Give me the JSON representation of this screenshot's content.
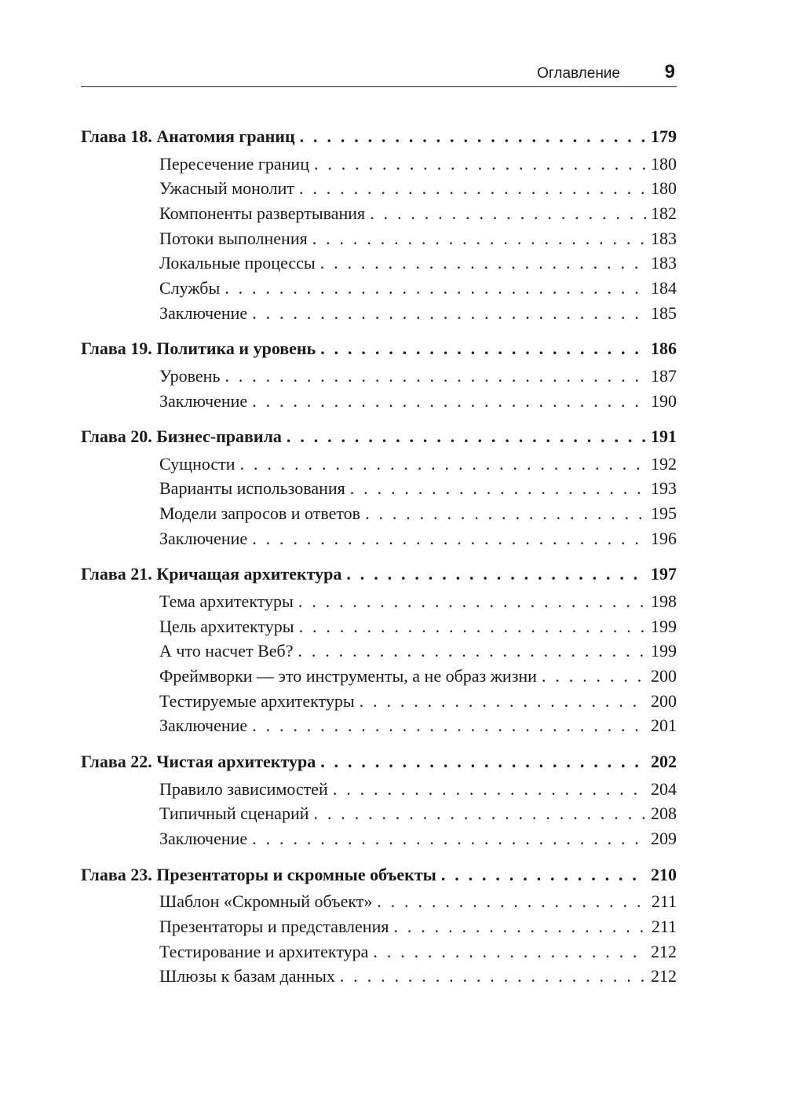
{
  "header": {
    "title": "Оглавление",
    "page_number": "9"
  },
  "toc": [
    {
      "title": "Глава 18. Анатомия границ",
      "page": "179",
      "sections": [
        {
          "title": "Пересечение границ",
          "page": "180"
        },
        {
          "title": "Ужасный монолит",
          "page": "180"
        },
        {
          "title": "Компоненты развертывания",
          "page": "182"
        },
        {
          "title": "Потоки выполнения",
          "page": "183"
        },
        {
          "title": "Локальные процессы",
          "page": "183"
        },
        {
          "title": "Службы",
          "page": "184"
        },
        {
          "title": "Заключение",
          "page": "185"
        }
      ]
    },
    {
      "title": "Глава 19. Политика и уровень",
      "page": "186",
      "sections": [
        {
          "title": "Уровень",
          "page": "187"
        },
        {
          "title": "Заключение",
          "page": "190"
        }
      ]
    },
    {
      "title": "Глава 20. Бизнес-правила",
      "page": "191",
      "sections": [
        {
          "title": "Сущности",
          "page": "192"
        },
        {
          "title": "Варианты использования",
          "page": "193"
        },
        {
          "title": "Модели запросов и ответов",
          "page": "195"
        },
        {
          "title": "Заключение",
          "page": "196"
        }
      ]
    },
    {
      "title": "Глава 21. Кричащая архитектура",
      "page": "197",
      "sections": [
        {
          "title": "Тема архитектуры",
          "page": "198"
        },
        {
          "title": "Цель архитектуры",
          "page": "199"
        },
        {
          "title": "А что насчет Веб?",
          "page": "199"
        },
        {
          "title": "Фреймворки — это инструменты, а не образ жизни",
          "page": "200"
        },
        {
          "title": "Тестируемые архитектуры",
          "page": "200"
        },
        {
          "title": "Заключение",
          "page": "201"
        }
      ]
    },
    {
      "title": "Глава 22. Чистая архитектура",
      "page": "202",
      "sections": [
        {
          "title": "Правило зависимостей",
          "page": "204"
        },
        {
          "title": "Типичный сценарий",
          "page": "208"
        },
        {
          "title": "Заключение",
          "page": "209"
        }
      ]
    },
    {
      "title": "Глава 23. Презентаторы и скромные объекты",
      "page": "210",
      "sections": [
        {
          "title": "Шаблон «Скромный объект»",
          "page": "211"
        },
        {
          "title": "Презентаторы и представления",
          "page": "211"
        },
        {
          "title": "Тестирование и архитектура",
          "page": "212"
        },
        {
          "title": "Шлюзы к базам данных",
          "page": "212"
        }
      ]
    }
  ]
}
